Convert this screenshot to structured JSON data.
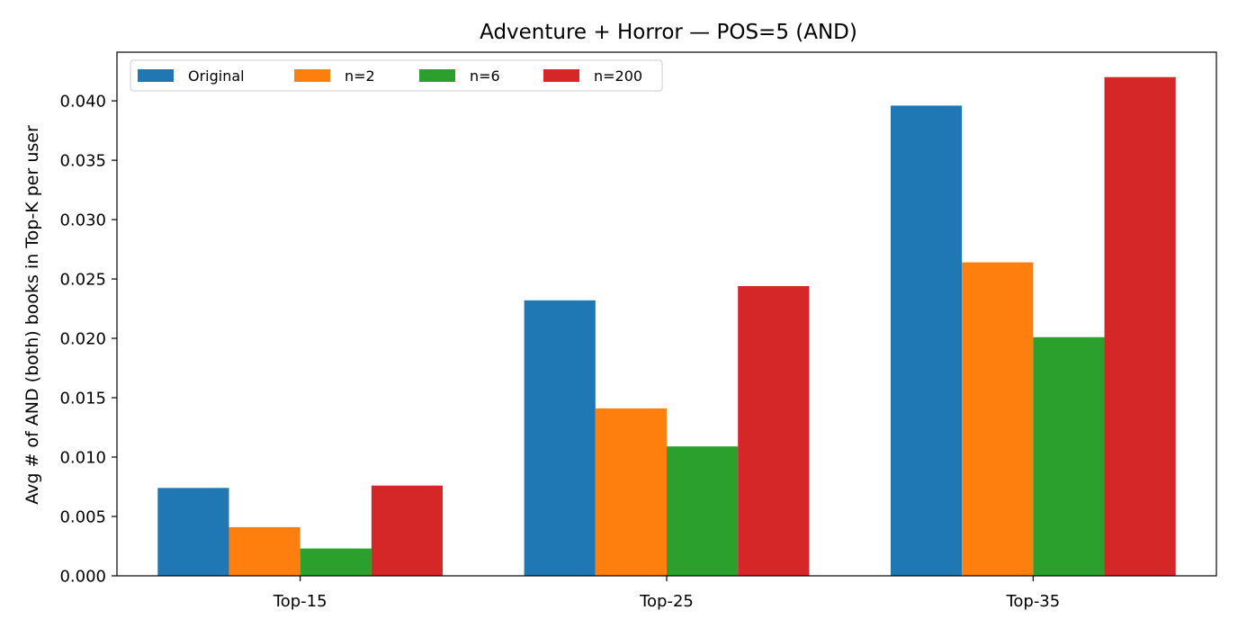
{
  "chart_data": {
    "type": "bar",
    "title": "Adventure + Horror — POS=5 (AND)",
    "xlabel": "",
    "ylabel": "Avg # of AND (both) books in Top-K per user",
    "categories": [
      "Top-15",
      "Top-25",
      "Top-35"
    ],
    "series": [
      {
        "name": "Original",
        "color": "#1f77b4",
        "values": [
          0.0074,
          0.0232,
          0.0396
        ]
      },
      {
        "name": "n=2",
        "color": "#ff7f0e",
        "values": [
          0.0041,
          0.0141,
          0.0264
        ]
      },
      {
        "name": "n=6",
        "color": "#2ca02c",
        "values": [
          0.0023,
          0.0109,
          0.0201
        ]
      },
      {
        "name": "n=200",
        "color": "#d62728",
        "values": [
          0.0076,
          0.0244,
          0.042
        ]
      }
    ],
    "ylim": [
      0,
      0.0441
    ],
    "yticks": [
      "0.000",
      "0.005",
      "0.010",
      "0.015",
      "0.020",
      "0.025",
      "0.030",
      "0.035",
      "0.040"
    ],
    "grid": false,
    "legend_position": "top-left"
  }
}
